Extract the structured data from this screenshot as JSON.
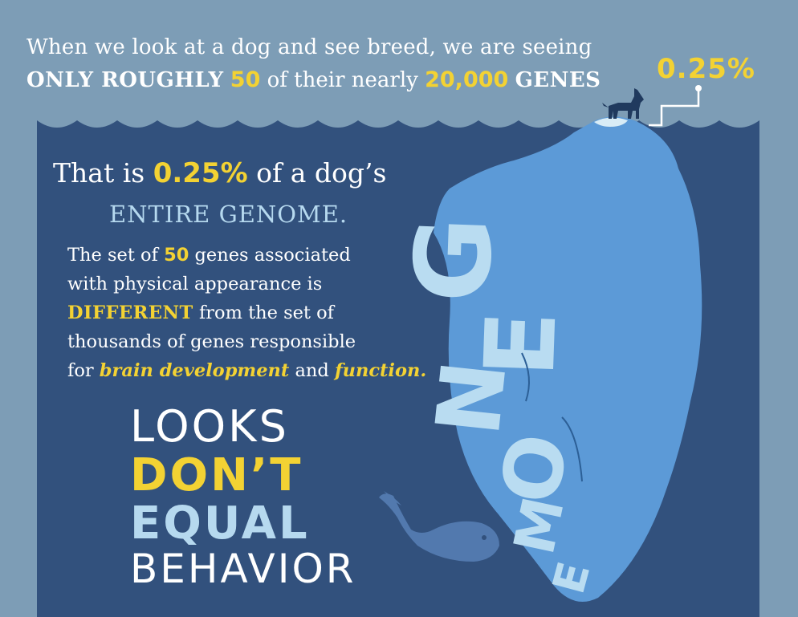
{
  "header": {
    "line1": "When we look at a dog and see breed, we are seeing",
    "line2_part1": "ONLY ROUGHLY",
    "line2_num1": "50",
    "line2_part2": "of their nearly",
    "line2_num2": "20,000",
    "line2_part3": "GENES",
    "callout_pct": "0.25%"
  },
  "main": {
    "line_a_part1": "That is",
    "line_a_num": "0.25%",
    "line_a_part2": "of a dog’s",
    "line_b": "ENTIRE GENOME.",
    "para_1": "The set of",
    "para_num": "50",
    "para_2": "genes associated",
    "para_3": "with physical appearance is",
    "para_diff": "DIFFERENT",
    "para_4": "from the set of",
    "para_5": "thousands of genes responsible",
    "para_6": "for",
    "para_it1": "brain development",
    "para_7": "and",
    "para_it2": "function.",
    "slogan_1": "LOOKS",
    "slogan_2": "DON’T",
    "slogan_3": "EQUAL",
    "slogan_4": "BEHAVIOR",
    "iceberg_word": "GENOME"
  },
  "colors": {
    "sky": "#7d9db6",
    "sea": "#32517d",
    "accent_yellow": "#f3d233",
    "light_blue": "#b6d9ef",
    "iceberg": "#5c9ad7"
  },
  "icons": [
    "dog-icon",
    "whale-icon",
    "iceberg-illustration",
    "callout-connector"
  ]
}
